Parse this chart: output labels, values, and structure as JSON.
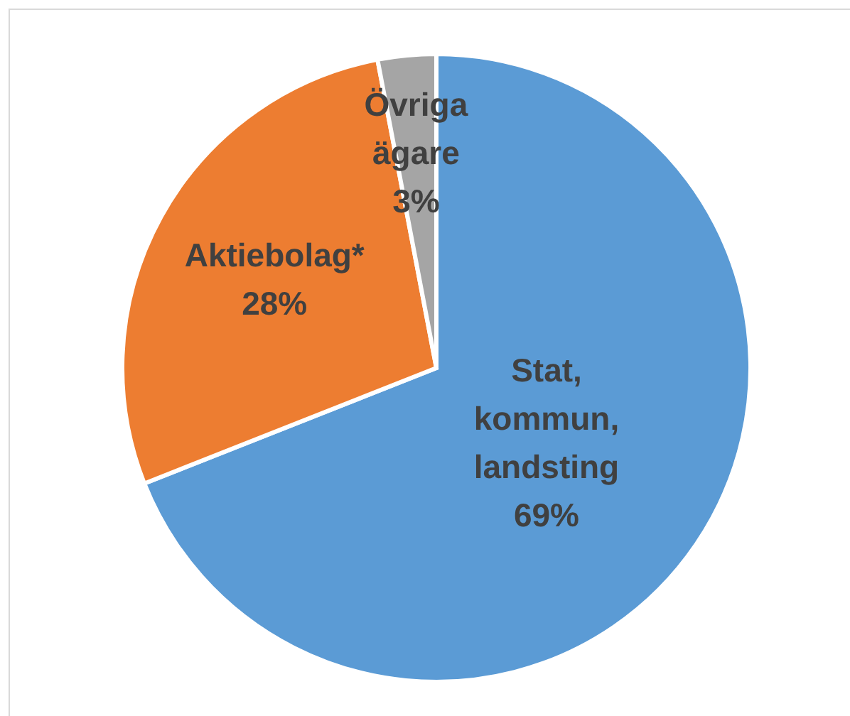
{
  "chart_data": {
    "type": "pie",
    "categories": [
      "Stat, kommun, landsting",
      "Aktiebolag*",
      "Övriga ägare"
    ],
    "values": [
      69,
      28,
      3
    ],
    "colors": [
      "#5b9bd5",
      "#ed7d31",
      "#a5a5a5"
    ],
    "value_labels": [
      "69%",
      "28%",
      "3%"
    ]
  }
}
